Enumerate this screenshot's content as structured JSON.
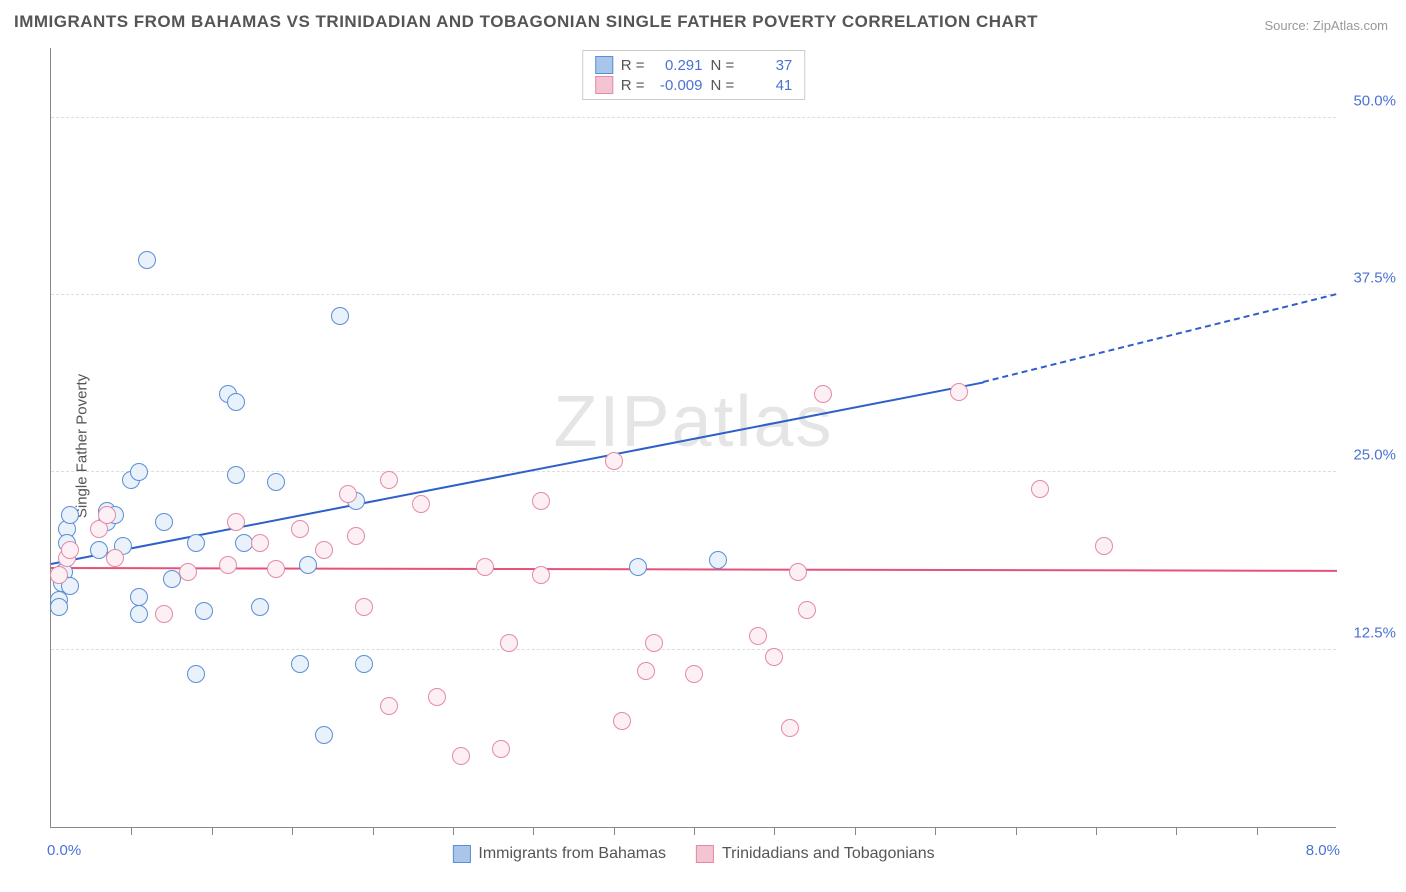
{
  "title": "IMMIGRANTS FROM BAHAMAS VS TRINIDADIAN AND TOBAGONIAN SINGLE FATHER POVERTY CORRELATION CHART",
  "source": "Source: ZipAtlas.com",
  "ylabel": "Single Father Poverty",
  "watermark": "ZIPatlas",
  "chart": {
    "type": "scatter",
    "xlim": [
      0.0,
      8.0
    ],
    "ylim": [
      0.0,
      55.0
    ],
    "xticks": [
      0.0,
      8.0
    ],
    "xtick_labels": [
      "0.0%",
      "8.0%"
    ],
    "yticks": [
      12.5,
      25.0,
      37.5,
      50.0
    ],
    "ytick_labels": [
      "12.5%",
      "25.0%",
      "37.5%",
      "50.0%"
    ],
    "grid_color": "#dddddd",
    "axis_color": "#888888",
    "background_color": "#ffffff",
    "point_radius": 9,
    "point_stroke_width": 1.2,
    "point_fill_opacity": 0.25,
    "xtick_positions_minor": [
      0.5,
      1.0,
      1.5,
      2.0,
      2.5,
      3.0,
      3.5,
      4.0,
      4.5,
      5.0,
      5.5,
      6.0,
      6.5,
      7.0,
      7.5
    ]
  },
  "series": [
    {
      "name": "Immigrants from Bahamas",
      "color_stroke": "#5b8fd6",
      "color_fill": "#a9c6ea",
      "R": "0.291",
      "N": "37",
      "trend": {
        "x1": 0.0,
        "y1": 18.5,
        "x2": 5.8,
        "y2": 31.3,
        "x2_dash": 8.0,
        "y2_dash": 37.5,
        "color": "#2f5fc9"
      },
      "points": [
        [
          0.05,
          16.0
        ],
        [
          0.05,
          15.5
        ],
        [
          0.08,
          18.0
        ],
        [
          0.07,
          17.2
        ],
        [
          0.1,
          21.0
        ],
        [
          0.12,
          22.0
        ],
        [
          0.1,
          20.0
        ],
        [
          0.12,
          17.0
        ],
        [
          0.3,
          19.5
        ],
        [
          0.35,
          21.5
        ],
        [
          0.35,
          22.3
        ],
        [
          0.4,
          22.0
        ],
        [
          0.45,
          19.8
        ],
        [
          0.5,
          24.5
        ],
        [
          0.55,
          25.0
        ],
        [
          0.55,
          16.2
        ],
        [
          0.55,
          15.0
        ],
        [
          0.6,
          40.0
        ],
        [
          0.7,
          21.5
        ],
        [
          0.75,
          17.5
        ],
        [
          0.9,
          10.8
        ],
        [
          0.9,
          20.0
        ],
        [
          0.95,
          15.2
        ],
        [
          1.1,
          30.5
        ],
        [
          1.15,
          30.0
        ],
        [
          1.15,
          24.8
        ],
        [
          1.2,
          20.0
        ],
        [
          1.3,
          15.5
        ],
        [
          1.4,
          24.3
        ],
        [
          1.55,
          11.5
        ],
        [
          1.6,
          18.5
        ],
        [
          1.7,
          6.5
        ],
        [
          1.8,
          36.0
        ],
        [
          1.9,
          23.0
        ],
        [
          1.95,
          11.5
        ],
        [
          3.65,
          18.3
        ],
        [
          4.15,
          18.8
        ]
      ]
    },
    {
      "name": "Trinidadians and Tobagonians",
      "color_stroke": "#e48aa4",
      "color_fill": "#f5c4d2",
      "R": "-0.009",
      "N": "41",
      "trend": {
        "x1": 0.0,
        "y1": 18.2,
        "x2": 8.0,
        "y2": 18.0,
        "color": "#e4527a"
      },
      "points": [
        [
          0.05,
          17.8
        ],
        [
          0.1,
          19.0
        ],
        [
          0.12,
          19.5
        ],
        [
          0.3,
          21.0
        ],
        [
          0.35,
          22.0
        ],
        [
          0.4,
          19.0
        ],
        [
          0.7,
          15.0
        ],
        [
          0.85,
          18.0
        ],
        [
          1.1,
          18.5
        ],
        [
          1.15,
          21.5
        ],
        [
          1.3,
          20.0
        ],
        [
          1.4,
          18.2
        ],
        [
          1.55,
          21.0
        ],
        [
          1.7,
          19.5
        ],
        [
          1.85,
          23.5
        ],
        [
          1.9,
          20.5
        ],
        [
          1.95,
          15.5
        ],
        [
          2.1,
          24.5
        ],
        [
          2.1,
          8.5
        ],
        [
          2.3,
          22.8
        ],
        [
          2.4,
          9.2
        ],
        [
          2.55,
          5.0
        ],
        [
          2.7,
          18.3
        ],
        [
          2.8,
          5.5
        ],
        [
          2.85,
          13.0
        ],
        [
          3.05,
          23.0
        ],
        [
          3.05,
          17.8
        ],
        [
          3.5,
          25.8
        ],
        [
          3.55,
          7.5
        ],
        [
          3.7,
          11.0
        ],
        [
          3.75,
          13.0
        ],
        [
          4.0,
          10.8
        ],
        [
          4.4,
          13.5
        ],
        [
          4.5,
          12.0
        ],
        [
          4.6,
          7.0
        ],
        [
          4.65,
          18.0
        ],
        [
          4.7,
          15.3
        ],
        [
          4.8,
          30.5
        ],
        [
          5.65,
          30.7
        ],
        [
          6.15,
          23.8
        ],
        [
          6.55,
          19.8
        ]
      ]
    }
  ],
  "stats_box": {
    "rows": [
      {
        "r_label": "R =",
        "n_label": "N ="
      },
      {
        "r_label": "R =",
        "n_label": "N ="
      }
    ]
  },
  "bottom_legend": {}
}
